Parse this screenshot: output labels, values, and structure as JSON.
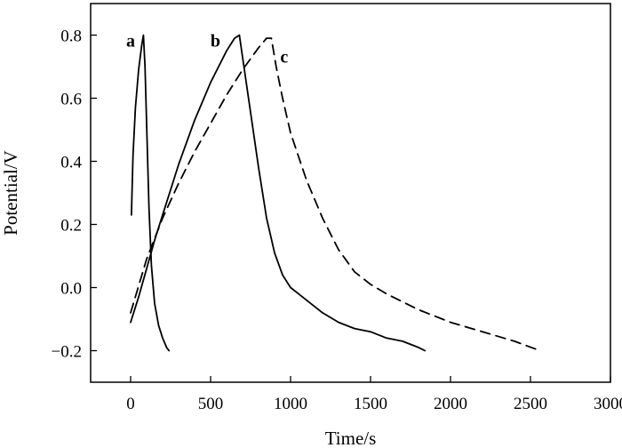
{
  "chart_data": {
    "type": "line",
    "title": "",
    "xlabel": "Time/s",
    "ylabel": "Potential/V",
    "xlim": [
      -250,
      3000
    ],
    "ylim": [
      -0.3,
      0.9
    ],
    "xticks": [
      0,
      500,
      1000,
      1500,
      2000,
      2500,
      3000
    ],
    "yticks": [
      -0.2,
      0.0,
      0.2,
      0.4,
      0.6,
      0.8
    ],
    "ytick_labels": [
      "−0.2",
      "0.0",
      "0.2",
      "0.4",
      "0.6",
      "0.8"
    ],
    "grid": false,
    "legend": "none",
    "series": [
      {
        "label": "a",
        "style": "solid",
        "x": [
          5,
          15,
          30,
          50,
          70,
          80,
          90,
          100,
          115,
          130,
          150,
          175,
          200,
          225,
          240
        ],
        "y": [
          0.23,
          0.42,
          0.57,
          0.69,
          0.77,
          0.8,
          0.7,
          0.52,
          0.25,
          0.07,
          -0.05,
          -0.12,
          -0.16,
          -0.19,
          -0.2
        ],
        "label_pos": {
          "x": 0,
          "y": 0.78
        }
      },
      {
        "label": "b",
        "style": "solid",
        "x": [
          0,
          50,
          100,
          150,
          200,
          250,
          300,
          350,
          400,
          450,
          500,
          550,
          600,
          650,
          680,
          720,
          800,
          850,
          900,
          950,
          1000,
          1050,
          1100,
          1200,
          1300,
          1400,
          1500,
          1600,
          1700,
          1800,
          1840
        ],
        "y": [
          -0.11,
          -0.03,
          0.06,
          0.15,
          0.23,
          0.31,
          0.39,
          0.46,
          0.53,
          0.59,
          0.65,
          0.7,
          0.75,
          0.79,
          0.8,
          0.66,
          0.38,
          0.22,
          0.11,
          0.04,
          0.0,
          -0.02,
          -0.04,
          -0.08,
          -0.11,
          -0.13,
          -0.14,
          -0.16,
          -0.17,
          -0.19,
          -0.2
        ],
        "label_pos": {
          "x": 530,
          "y": 0.78
        }
      },
      {
        "label": "c",
        "style": "dashed",
        "x": [
          0,
          100,
          200,
          300,
          400,
          500,
          600,
          700,
          800,
          850,
          880,
          910,
          950,
          1000,
          1100,
          1200,
          1300,
          1400,
          1500,
          1600,
          1800,
          2000,
          2200,
          2400,
          2560
        ],
        "y": [
          -0.08,
          0.09,
          0.22,
          0.33,
          0.43,
          0.52,
          0.61,
          0.69,
          0.76,
          0.79,
          0.79,
          0.7,
          0.6,
          0.49,
          0.34,
          0.22,
          0.12,
          0.05,
          0.01,
          -0.02,
          -0.07,
          -0.11,
          -0.14,
          -0.17,
          -0.2
        ],
        "label_pos": {
          "x": 960,
          "y": 0.73
        }
      }
    ]
  }
}
